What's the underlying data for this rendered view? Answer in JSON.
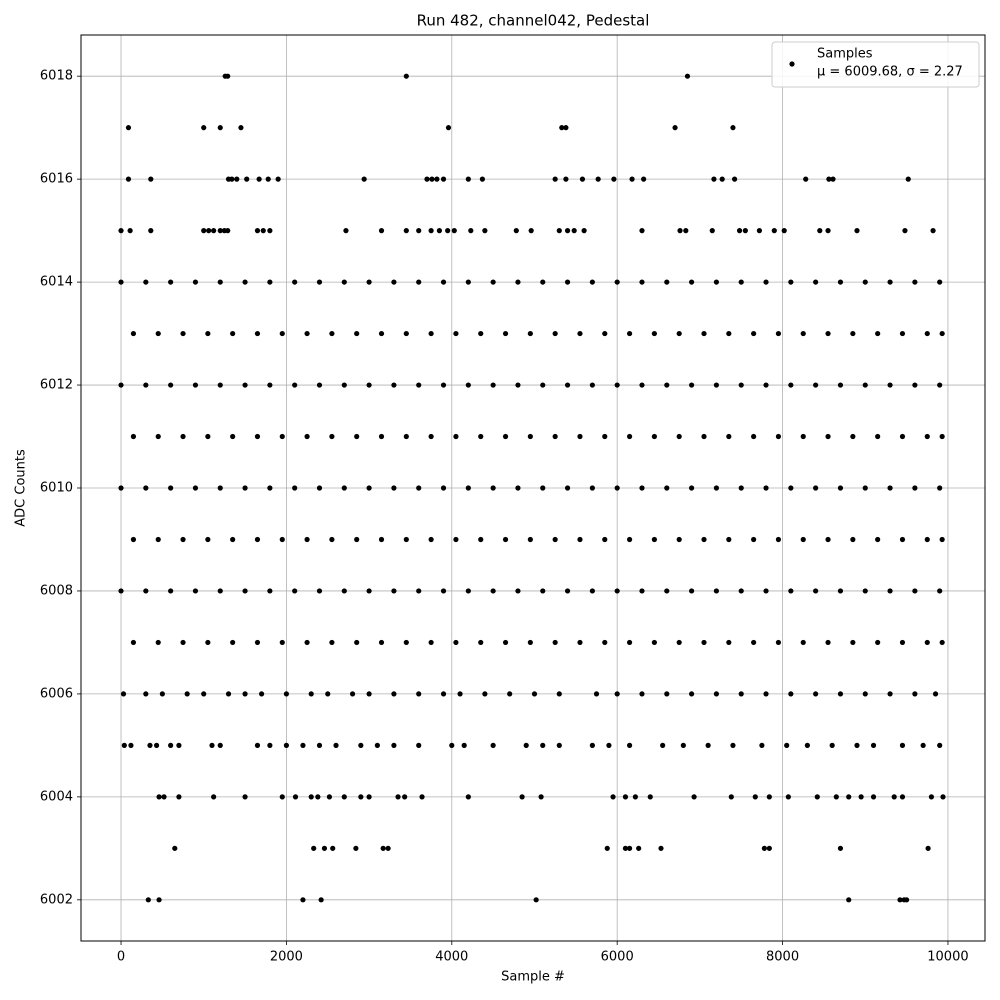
{
  "chart_data": {
    "type": "scatter",
    "title": "Run 482, channel042, Pedestal",
    "x_label": "Sample #",
    "y_label": "ADC Counts",
    "xlim": [
      -484,
      10448
    ],
    "ylim": [
      6001.2,
      6018.8
    ],
    "xticks": [
      0,
      2000,
      4000,
      6000,
      8000,
      10000
    ],
    "yticks": [
      6002,
      6004,
      6006,
      6008,
      6010,
      6012,
      6014,
      6016,
      6018
    ],
    "grid": true,
    "legend": "upper right",
    "legend_note": "μ = 6009.68, σ = 2.27",
    "series": [
      {
        "name": "Samples",
        "color": "#000000",
        "x": [
          330,
          460,
          2200,
          2420,
          5020,
          8800,
          9420,
          9470,
          9500,
          650,
          2330,
          2460,
          2560,
          2840,
          3170,
          3230,
          5880,
          6100,
          6150,
          6260,
          6530,
          7780,
          7840,
          8700,
          9760,
          1260,
          1290,
          3450,
          6850,
          90,
          1000,
          1200,
          1450,
          3960,
          5330,
          5380,
          6700,
          7400,
          90,
          360,
          1300,
          1340,
          1400,
          1520,
          1670,
          1780,
          1900,
          2940,
          3700,
          3760,
          3820,
          3900,
          4200,
          4370,
          5250,
          5380,
          5580,
          5770,
          5960,
          6180,
          6320,
          7170,
          7270,
          7420,
          8280,
          8560,
          8610,
          9520,
          0,
          110,
          360,
          1000,
          1060,
          1120,
          1200,
          1250,
          1290,
          1650,
          1720,
          1800,
          2720,
          3150,
          3450,
          3600,
          3750,
          3850,
          3950,
          4030,
          4230,
          4400,
          4780,
          4960,
          5300,
          5400,
          5480,
          5600,
          6300,
          6760,
          6830,
          7150,
          7480,
          7550,
          7720,
          7900,
          8020,
          8450,
          8550,
          8900,
          9480,
          9820,
          460,
          520,
          700,
          1120,
          1500,
          1950,
          2110,
          2300,
          2380,
          2520,
          2700,
          2900,
          3000,
          3350,
          3430,
          3640,
          4200,
          4850,
          5080,
          5950,
          6100,
          6220,
          6400,
          6930,
          7380,
          7670,
          7840,
          8070,
          8420,
          8650,
          8800,
          8950,
          9100,
          9350,
          9450,
          9800,
          9940,
          40,
          120,
          350,
          430,
          600,
          700,
          1100,
          1200,
          1650,
          1800,
          2000,
          2200,
          2400,
          2600,
          2900,
          3100,
          3300,
          3600,
          4000,
          4150,
          4500,
          4900,
          5100,
          5300,
          5700,
          5900,
          6150,
          6550,
          6800,
          7100,
          7400,
          7750,
          8050,
          8300,
          8600,
          8900,
          9100,
          9450,
          9700,
          9900,
          30,
          300,
          500,
          800,
          1000,
          1300,
          1500,
          1700,
          2000,
          2300,
          2500,
          2800,
          3000,
          3300,
          3600,
          3900,
          4100,
          4400,
          4700,
          5000,
          5300,
          5750,
          6000,
          6300,
          6600,
          6900,
          7200,
          7500,
          7800,
          8100,
          8400,
          8700,
          9000,
          9300,
          9600,
          9850,
          150,
          450,
          750,
          1050,
          1350,
          1650,
          1950,
          2250,
          2550,
          2850,
          3150,
          3450,
          3750,
          4050,
          4350,
          4650,
          4950,
          5250,
          5550,
          5850,
          6150,
          6450,
          6750,
          7050,
          7350,
          7650,
          7950,
          8250,
          8550,
          8850,
          9150,
          9450,
          9750,
          9930,
          0,
          300,
          600,
          900,
          1200,
          1500,
          1800,
          2100,
          2400,
          2700,
          3000,
          3300,
          3600,
          3900,
          4200,
          4500,
          4800,
          5100,
          5400,
          5700,
          6000,
          6300,
          6600,
          6900,
          7200,
          7500,
          7800,
          8100,
          8400,
          8700,
          9000,
          9300,
          9600,
          9900,
          150,
          450,
          750,
          1050,
          1350,
          1650,
          1950,
          2250,
          2550,
          2850,
          3150,
          3450,
          3750,
          4050,
          4350,
          4650,
          4950,
          5250,
          5550,
          5850,
          6150,
          6450,
          6750,
          7050,
          7350,
          7650,
          7950,
          8250,
          8550,
          8850,
          9150,
          9450,
          9750,
          9930,
          0,
          300,
          600,
          900,
          1200,
          1500,
          1800,
          2100,
          2400,
          2700,
          3000,
          3300,
          3600,
          3900,
          4200,
          4500,
          4800,
          5100,
          5400,
          5700,
          6000,
          6300,
          6600,
          6900,
          7200,
          7500,
          7800,
          8100,
          8400,
          8700,
          9000,
          9300,
          9600,
          9900,
          150,
          450,
          750,
          1050,
          1350,
          1650,
          1950,
          2250,
          2550,
          2850,
          3150,
          3450,
          3750,
          4050,
          4350,
          4650,
          4950,
          5250,
          5550,
          5850,
          6150,
          6450,
          6750,
          7050,
          7350,
          7650,
          7950,
          8250,
          8550,
          8850,
          9150,
          9450,
          9750,
          9930,
          0,
          300,
          600,
          900,
          1200,
          1500,
          1800,
          2100,
          2400,
          2700,
          3000,
          3300,
          3600,
          3900,
          4200,
          4500,
          4800,
          5100,
          5400,
          5700,
          6000,
          6300,
          6600,
          6900,
          7200,
          7500,
          7800,
          8100,
          8400,
          8700,
          9000,
          9300,
          9600,
          9900,
          150,
          450,
          750,
          1050,
          1350,
          1650,
          1950,
          2250,
          2550,
          2850,
          3150,
          3450,
          3750,
          4050,
          4350,
          4650,
          4950,
          5250,
          5550,
          5850,
          6150,
          6450,
          6750,
          7050,
          7350,
          7650,
          7950,
          8250,
          8550,
          8850,
          9150,
          9450,
          9750,
          9930,
          0,
          300,
          600,
          900,
          1200,
          1500,
          1800,
          2100,
          2400,
          2700,
          3000,
          3300,
          3600,
          3900,
          4200,
          4500,
          4800,
          5100,
          5400,
          5700,
          6000,
          6300,
          6600,
          6900,
          7200,
          7500,
          7800,
          8100,
          8400,
          8700,
          9000,
          9300,
          9600,
          9900
        ],
        "values": [
          6002,
          6002,
          6002,
          6002,
          6002,
          6002,
          6002,
          6002,
          6002,
          6003,
          6003,
          6003,
          6003,
          6003,
          6003,
          6003,
          6003,
          6003,
          6003,
          6003,
          6003,
          6003,
          6003,
          6003,
          6003,
          6018,
          6018,
          6018,
          6018,
          6017,
          6017,
          6017,
          6017,
          6017,
          6017,
          6017,
          6017,
          6017,
          6016,
          6016,
          6016,
          6016,
          6016,
          6016,
          6016,
          6016,
          6016,
          6016,
          6016,
          6016,
          6016,
          6016,
          6016,
          6016,
          6016,
          6016,
          6016,
          6016,
          6016,
          6016,
          6016,
          6016,
          6016,
          6016,
          6016,
          6016,
          6016,
          6016,
          6015,
          6015,
          6015,
          6015,
          6015,
          6015,
          6015,
          6015,
          6015,
          6015,
          6015,
          6015,
          6015,
          6015,
          6015,
          6015,
          6015,
          6015,
          6015,
          6015,
          6015,
          6015,
          6015,
          6015,
          6015,
          6015,
          6015,
          6015,
          6015,
          6015,
          6015,
          6015,
          6015,
          6015,
          6015,
          6015,
          6015,
          6015,
          6015,
          6015,
          6015,
          6015,
          6004,
          6004,
          6004,
          6004,
          6004,
          6004,
          6004,
          6004,
          6004,
          6004,
          6004,
          6004,
          6004,
          6004,
          6004,
          6004,
          6004,
          6004,
          6004,
          6004,
          6004,
          6004,
          6004,
          6004,
          6004,
          6004,
          6004,
          6004,
          6004,
          6004,
          6004,
          6004,
          6004,
          6004,
          6004,
          6004,
          6004,
          6005,
          6005,
          6005,
          6005,
          6005,
          6005,
          6005,
          6005,
          6005,
          6005,
          6005,
          6005,
          6005,
          6005,
          6005,
          6005,
          6005,
          6005,
          6005,
          6005,
          6005,
          6005,
          6005,
          6005,
          6005,
          6005,
          6005,
          6005,
          6005,
          6005,
          6005,
          6005,
          6005,
          6005,
          6005,
          6005,
          6005,
          6005,
          6005,
          6005,
          6006,
          6006,
          6006,
          6006,
          6006,
          6006,
          6006,
          6006,
          6006,
          6006,
          6006,
          6006,
          6006,
          6006,
          6006,
          6006,
          6006,
          6006,
          6006,
          6006,
          6006,
          6006,
          6006,
          6006,
          6006,
          6006,
          6006,
          6006,
          6006,
          6006,
          6006,
          6006,
          6006,
          6006,
          6006,
          6006,
          6007,
          6007,
          6007,
          6007,
          6007,
          6007,
          6007,
          6007,
          6007,
          6007,
          6007,
          6007,
          6007,
          6007,
          6007,
          6007,
          6007,
          6007,
          6007,
          6007,
          6007,
          6007,
          6007,
          6007,
          6007,
          6007,
          6007,
          6007,
          6007,
          6007,
          6007,
          6007,
          6007,
          6007,
          6008,
          6008,
          6008,
          6008,
          6008,
          6008,
          6008,
          6008,
          6008,
          6008,
          6008,
          6008,
          6008,
          6008,
          6008,
          6008,
          6008,
          6008,
          6008,
          6008,
          6008,
          6008,
          6008,
          6008,
          6008,
          6008,
          6008,
          6008,
          6008,
          6008,
          6008,
          6008,
          6008,
          6008,
          6009,
          6009,
          6009,
          6009,
          6009,
          6009,
          6009,
          6009,
          6009,
          6009,
          6009,
          6009,
          6009,
          6009,
          6009,
          6009,
          6009,
          6009,
          6009,
          6009,
          6009,
          6009,
          6009,
          6009,
          6009,
          6009,
          6009,
          6009,
          6009,
          6009,
          6009,
          6009,
          6009,
          6009,
          6010,
          6010,
          6010,
          6010,
          6010,
          6010,
          6010,
          6010,
          6010,
          6010,
          6010,
          6010,
          6010,
          6010,
          6010,
          6010,
          6010,
          6010,
          6010,
          6010,
          6010,
          6010,
          6010,
          6010,
          6010,
          6010,
          6010,
          6010,
          6010,
          6010,
          6010,
          6010,
          6010,
          6010,
          6011,
          6011,
          6011,
          6011,
          6011,
          6011,
          6011,
          6011,
          6011,
          6011,
          6011,
          6011,
          6011,
          6011,
          6011,
          6011,
          6011,
          6011,
          6011,
          6011,
          6011,
          6011,
          6011,
          6011,
          6011,
          6011,
          6011,
          6011,
          6011,
          6011,
          6011,
          6011,
          6011,
          6011,
          6012,
          6012,
          6012,
          6012,
          6012,
          6012,
          6012,
          6012,
          6012,
          6012,
          6012,
          6012,
          6012,
          6012,
          6012,
          6012,
          6012,
          6012,
          6012,
          6012,
          6012,
          6012,
          6012,
          6012,
          6012,
          6012,
          6012,
          6012,
          6012,
          6012,
          6012,
          6012,
          6012,
          6012,
          6013,
          6013,
          6013,
          6013,
          6013,
          6013,
          6013,
          6013,
          6013,
          6013,
          6013,
          6013,
          6013,
          6013,
          6013,
          6013,
          6013,
          6013,
          6013,
          6013,
          6013,
          6013,
          6013,
          6013,
          6013,
          6013,
          6013,
          6013,
          6013,
          6013,
          6013,
          6013,
          6013,
          6013,
          6014,
          6014,
          6014,
          6014,
          6014,
          6014,
          6014,
          6014,
          6014,
          6014,
          6014,
          6014,
          6014,
          6014,
          6014,
          6014,
          6014,
          6014,
          6014,
          6014,
          6014,
          6014,
          6014,
          6014,
          6014,
          6014,
          6014,
          6014,
          6014,
          6014,
          6014,
          6014,
          6014,
          6014
        ]
      }
    ]
  }
}
